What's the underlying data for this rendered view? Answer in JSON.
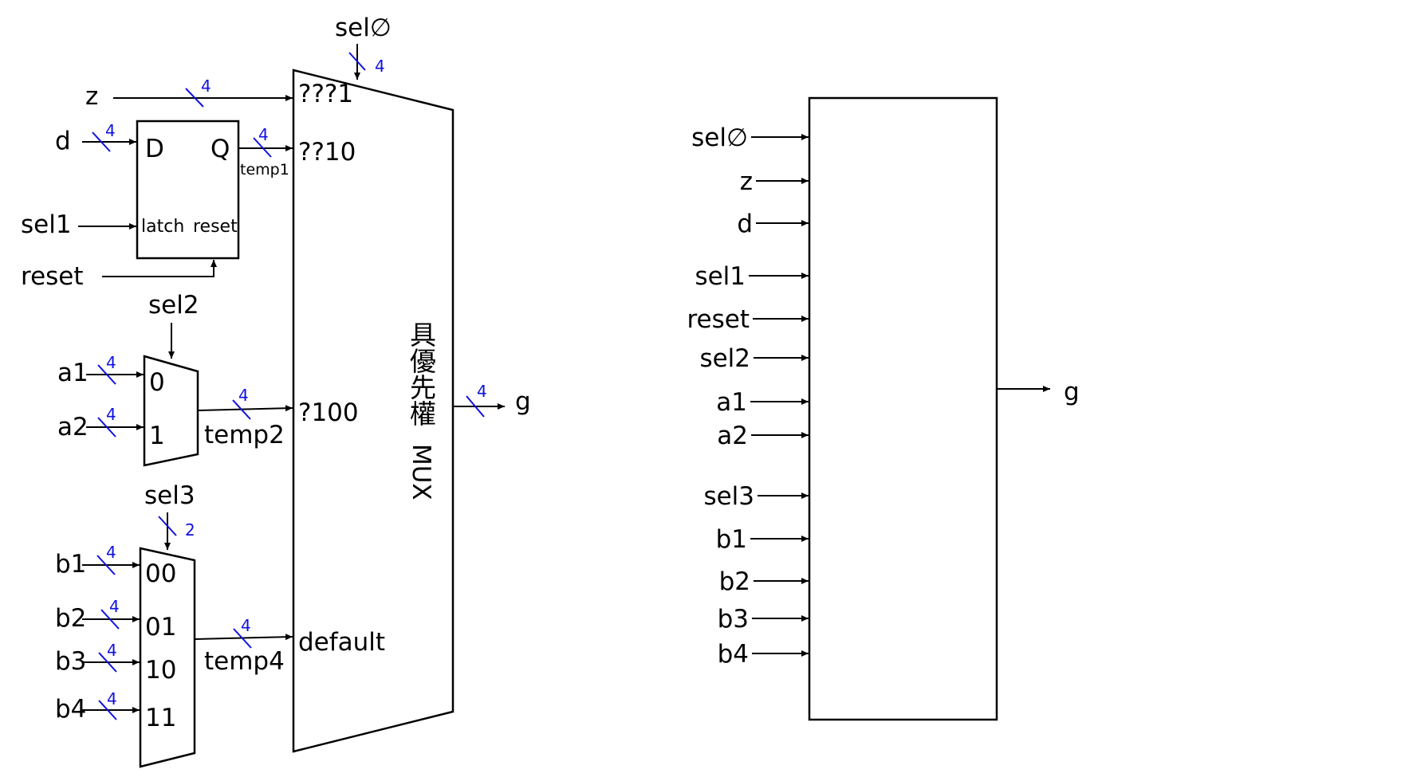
{
  "left_diagram": {
    "inputs": {
      "sel0": "sel∅",
      "z": "z",
      "d": "d",
      "sel1": "sel1",
      "reset": "reset",
      "sel2": "sel2",
      "a1": "a1",
      "a2": "a2",
      "sel3": "sel3",
      "b1": "b1",
      "b2": "b2",
      "b3": "b3",
      "b4": "b4"
    },
    "output": "g",
    "latch": {
      "d_pin": "D",
      "q_pin": "Q",
      "latch_pin": "latch",
      "reset_pin": "reset",
      "out_signal": "temp1"
    },
    "mux2": {
      "in0": "0",
      "in1": "1",
      "out_signal": "temp2"
    },
    "mux4": {
      "in00": "00",
      "in01": "01",
      "in10": "10",
      "in11": "11",
      "out_signal": "temp4"
    },
    "priority_mux": {
      "title_cjk": "具優先權",
      "title_mux": "MUX",
      "case1": "???1",
      "case2": "??10",
      "case3": "?100",
      "case4": "default"
    },
    "bus_widths": {
      "sel0": "4",
      "z": "4",
      "d": "4",
      "q": "4",
      "a1": "4",
      "a2": "4",
      "temp2": "4",
      "sel3": "2",
      "b1": "4",
      "b2": "4",
      "b3": "4",
      "b4": "4",
      "temp4": "4",
      "g": "4"
    }
  },
  "right_diagram": {
    "inputs": [
      "sel∅",
      "z",
      "d",
      "sel1",
      "reset",
      "sel2",
      "a1",
      "a2",
      "sel3",
      "b1",
      "b2",
      "b3",
      "b4"
    ],
    "output": "g"
  }
}
